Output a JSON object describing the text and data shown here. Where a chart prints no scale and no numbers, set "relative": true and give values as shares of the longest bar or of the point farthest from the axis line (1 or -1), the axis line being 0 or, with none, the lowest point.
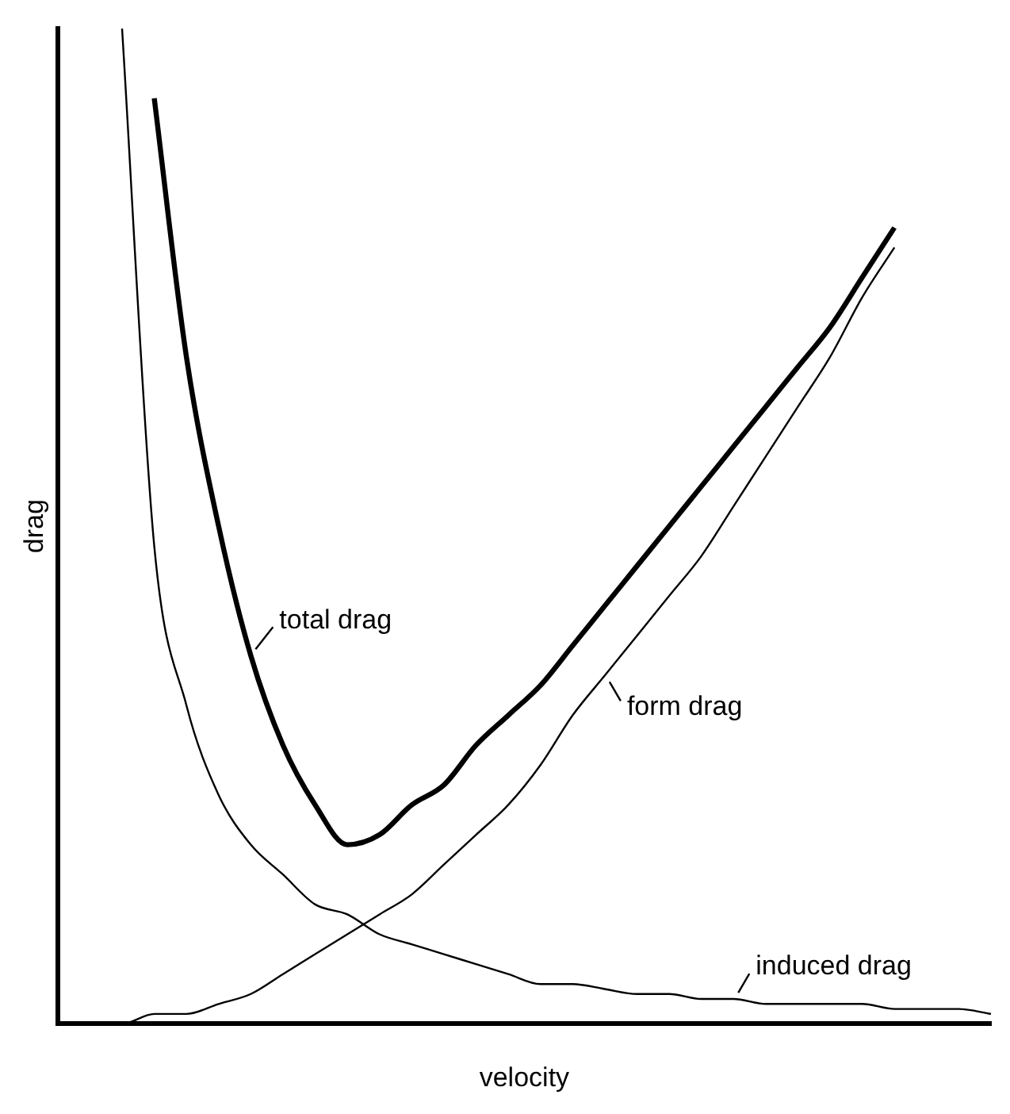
{
  "chart_data": {
    "type": "line",
    "relative": true,
    "xlabel": "velocity",
    "ylabel": "drag",
    "legend": "bottom right",
    "grid": false,
    "marker": "none",
    "line_style": "solid",
    "categories": [
      null,
      null,
      null,
      null,
      null,
      null,
      null,
      null,
      null,
      null,
      null,
      null,
      null,
      null,
      null,
      null,
      null,
      null,
      null,
      null,
      null,
      null,
      null,
      null,
      null,
      null,
      null,
      null,
      null,
      null
    ],
    "series": [
      {
        "name": "total drag",
        "color": "#000000",
        "values": [
          null,
          null,
          null,
          0.93,
          0.67,
          0.5,
          0.37,
          0.28,
          0.22,
          0.18,
          0.19,
          0.22,
          0.24,
          0.28,
          0.31,
          0.34,
          0.38,
          0.42,
          0.46,
          0.5,
          0.54,
          0.58,
          0.62,
          0.66,
          0.7,
          0.75,
          0.8,
          null,
          null,
          null
        ]
      },
      {
        "name": "form drag",
        "color": "#000000",
        "values": [
          0,
          0,
          0,
          0.01,
          0.01,
          0.02,
          0.03,
          0.05,
          0.07,
          0.09,
          0.11,
          0.13,
          0.16,
          0.19,
          0.22,
          0.26,
          0.31,
          0.35,
          0.39,
          0.43,
          0.47,
          0.52,
          0.57,
          0.62,
          0.67,
          0.73,
          0.78,
          null,
          null,
          null
        ]
      },
      {
        "name": "induced drag",
        "color": "#000000",
        "values": [
          null,
          null,
          1,
          0.48,
          0.32,
          0.23,
          0.18,
          0.15,
          0.12,
          0.11,
          0.09,
          0.08,
          0.07,
          0.06,
          0.05,
          0.04,
          0.04,
          0.035,
          0.03,
          0.03,
          0.025,
          0.025,
          0.02,
          0.02,
          0.02,
          0.02,
          0.015,
          0.015,
          0.015,
          0.01
        ]
      }
    ]
  }
}
